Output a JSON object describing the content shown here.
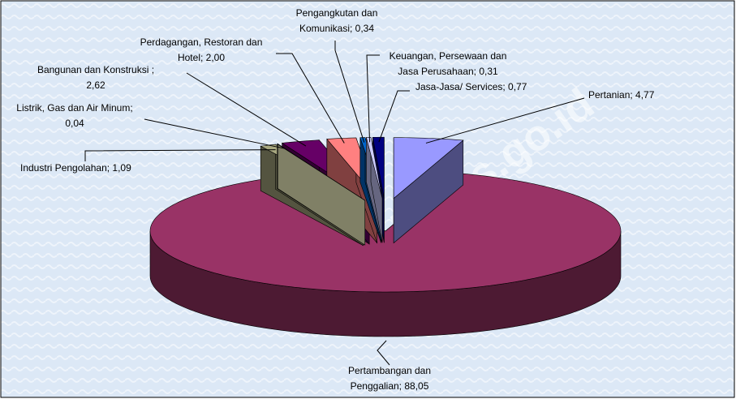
{
  "chart_data": {
    "type": "pie",
    "values": [
      4.77,
      88.05,
      1.09,
      0.04,
      2.62,
      2.0,
      0.34,
      0.31,
      0.77
    ],
    "labels": [
      [
        "Pertanian; 4,77"
      ],
      [
        "Pertambangan dan",
        "Penggalian; 88,05"
      ],
      [
        "Industri Pengolahan; 1,09"
      ],
      [
        "Listrik, Gas dan Air Minum;",
        "0,04"
      ],
      [
        "Bangunan dan Konstruksi ;",
        "2,62"
      ],
      [
        "Perdagangan, Restoran dan",
        "Hotel; 2,00"
      ],
      [
        "Pengangkutan dan",
        "Komunikasi; 0,34"
      ],
      [
        "Keuangan, Persewaan dan",
        "Jasa Perusahaan; 0,31"
      ],
      [
        "Jasa-Jasa/ Services; 0,77"
      ]
    ],
    "colors": [
      "#9999ff",
      "#993366",
      "#a8a880",
      "#ffffcc",
      "#660066",
      "#ff8080",
      "#0066cc",
      "#ccccff",
      "#000080"
    ],
    "watermark": "karkab.bps.go.id"
  }
}
